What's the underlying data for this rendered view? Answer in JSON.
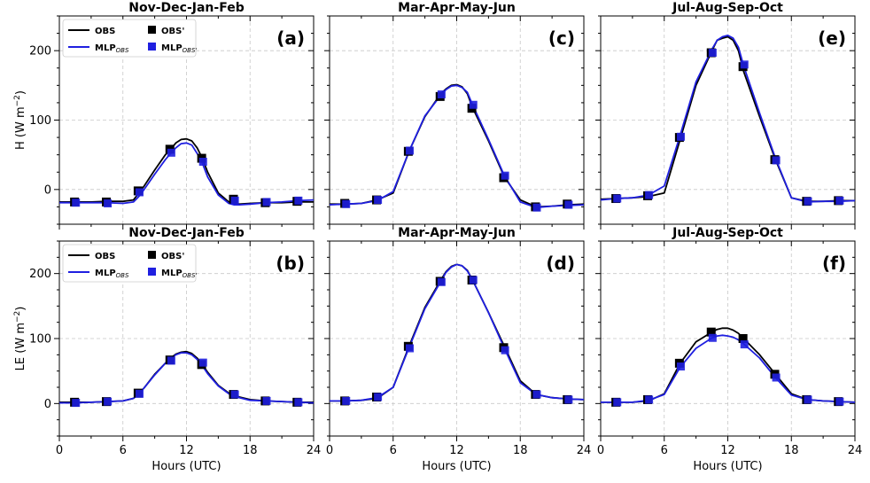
{
  "figure": {
    "xlabel": "Hours (UTC)",
    "colors": {
      "obs": "#000000",
      "mlp": "#1f1fe0"
    }
  },
  "chart_data": [
    {
      "id": "a",
      "panel_label": "(a)",
      "title": "Nov-Dec-Jan-Feb",
      "type": "line",
      "ylabel_main": "H (W m",
      "ylabel_sup": "−2",
      "ylabel_end": ")",
      "xlim": [
        0,
        24
      ],
      "ylim": [
        -50,
        250
      ],
      "xticks": [
        0,
        6,
        12,
        18,
        24
      ],
      "yticks": [
        0,
        100,
        200
      ],
      "legend": {
        "obs": "OBS",
        "mlp": "MLP",
        "mlp_sub": "OBS",
        "obs_m": "OBS'",
        "mlp_m": "MLP",
        "mlp_m_sub": "OBS'"
      },
      "x": [
        0,
        1.5,
        3,
        4.5,
        6,
        7,
        7.5,
        8,
        9,
        10,
        10.5,
        11,
        11.5,
        12,
        12.5,
        13,
        13.5,
        14,
        15,
        16,
        16.5,
        17,
        18,
        19.5,
        21,
        22.5,
        24
      ],
      "series": [
        {
          "key": "obs",
          "values": [
            -18,
            -18,
            -18,
            -17,
            -17,
            -15,
            -5,
            5,
            28,
            50,
            58,
            67,
            72,
            73,
            70,
            60,
            45,
            25,
            -5,
            -18,
            -20,
            -21,
            -20,
            -19,
            -19,
            -18,
            -18
          ]
        },
        {
          "key": "mlp",
          "values": [
            -19,
            -19,
            -19,
            -19,
            -20,
            -18,
            -10,
            0,
            22,
            43,
            52,
            60,
            66,
            67,
            64,
            52,
            38,
            18,
            -8,
            -20,
            -22,
            -22,
            -21,
            -19,
            -18,
            -16,
            -15
          ]
        }
      ],
      "markers_x": [
        1.5,
        4.5,
        7.5,
        10.5,
        13.5,
        16.5,
        19.5,
        22.5
      ],
      "markers": {
        "obs": [
          -18,
          -18,
          -2,
          58,
          45,
          -14,
          -19,
          -17
        ],
        "mlp": [
          -19,
          -20,
          -4,
          53,
          40,
          -16,
          -18,
          -16
        ]
      }
    },
    {
      "id": "c",
      "panel_label": "(c)",
      "title": "Mar-Apr-May-Jun",
      "type": "line",
      "xlim": [
        0,
        24
      ],
      "ylim": [
        -50,
        250
      ],
      "xticks": [
        0,
        6,
        12,
        18,
        24
      ],
      "yticks": [
        0,
        100,
        200
      ],
      "x": [
        0,
        1.5,
        3,
        4.5,
        6,
        7.5,
        9,
        10.5,
        11,
        11.5,
        12,
        12.5,
        13,
        13.5,
        15,
        16.5,
        18,
        19.5,
        21,
        22.5,
        24
      ],
      "series": [
        {
          "key": "obs",
          "values": [
            -21,
            -21,
            -20,
            -15,
            -5,
            55,
            105,
            138,
            145,
            150,
            151,
            148,
            138,
            118,
            70,
            18,
            -15,
            -25,
            -24,
            -22,
            -21
          ]
        },
        {
          "key": "mlp",
          "values": [
            -22,
            -21,
            -20,
            -16,
            -3,
            55,
            106,
            136,
            144,
            149,
            150,
            147,
            140,
            122,
            72,
            20,
            -18,
            -26,
            -24,
            -23,
            -22
          ]
        }
      ],
      "markers_x": [
        1.5,
        4.5,
        7.5,
        10.5,
        13.5,
        16.5,
        19.5,
        22.5
      ],
      "markers": {
        "obs": [
          -20,
          -15,
          55,
          134,
          117,
          17,
          -25,
          -21
        ],
        "mlp": [
          -21,
          -15,
          56,
          137,
          122,
          20,
          -26,
          -22
        ]
      }
    },
    {
      "id": "e",
      "panel_label": "(e)",
      "title": "Jul-Aug-Sep-Oct",
      "type": "line",
      "xlim": [
        0,
        24
      ],
      "ylim": [
        -50,
        250
      ],
      "xticks": [
        0,
        6,
        12,
        18,
        24
      ],
      "yticks": [
        0,
        100,
        200
      ],
      "x": [
        0,
        1.5,
        3,
        4.5,
        6,
        7.5,
        9,
        10.5,
        11,
        11.5,
        12,
        12.5,
        13,
        13.5,
        15,
        16.5,
        18,
        19.5,
        21,
        22.5,
        24
      ],
      "series": [
        {
          "key": "obs",
          "values": [
            -14,
            -13,
            -12,
            -10,
            -5,
            72,
            150,
            200,
            215,
            218,
            220,
            215,
            200,
            170,
            105,
            43,
            -12,
            -17,
            -17,
            -16,
            -16
          ]
        },
        {
          "key": "mlp",
          "values": [
            -15,
            -13,
            -12,
            -8,
            5,
            78,
            155,
            202,
            215,
            220,
            222,
            218,
            205,
            178,
            110,
            45,
            -12,
            -18,
            -17,
            -17,
            -16
          ]
        }
      ],
      "markers_x": [
        1.5,
        4.5,
        7.5,
        10.5,
        13.5,
        16.5,
        19.5,
        22.5
      ],
      "markers": {
        "obs": [
          -13,
          -9,
          75,
          197,
          177,
          43,
          -17,
          -16
        ],
        "mlp": [
          -13,
          -8,
          76,
          197,
          180,
          42,
          -17,
          -16
        ]
      }
    },
    {
      "id": "b",
      "panel_label": "(b)",
      "title": "Nov-Dec-Jan-Feb",
      "type": "line",
      "ylabel_main": "LE (W m",
      "ylabel_sup": "−2",
      "ylabel_end": ")",
      "xlim": [
        0,
        24
      ],
      "ylim": [
        -50,
        250
      ],
      "xticks": [
        0,
        6,
        12,
        18,
        24
      ],
      "yticks": [
        0,
        100,
        200
      ],
      "legend": {
        "obs": "OBS",
        "mlp": "MLP",
        "mlp_sub": "OBS",
        "obs_m": "OBS'",
        "mlp_m": "MLP",
        "mlp_m_sub": "OBS'"
      },
      "x": [
        0,
        1.5,
        3,
        4.5,
        6,
        7,
        7.5,
        8,
        9,
        10,
        10.5,
        11,
        11.5,
        12,
        12.5,
        13,
        13.5,
        14,
        15,
        16,
        16.5,
        17,
        18,
        19.5,
        21,
        22.5,
        24
      ],
      "series": [
        {
          "key": "obs",
          "values": [
            2,
            2,
            2,
            3,
            4,
            8,
            15,
            24,
            45,
            62,
            70,
            76,
            79,
            80,
            77,
            70,
            60,
            48,
            28,
            16,
            13,
            10,
            6,
            4,
            3,
            2,
            2
          ]
        },
        {
          "key": "mlp",
          "values": [
            1,
            1,
            2,
            3,
            4,
            8,
            15,
            24,
            44,
            62,
            69,
            75,
            78,
            78,
            75,
            68,
            58,
            46,
            27,
            15,
            12,
            9,
            5,
            4,
            3,
            2,
            1
          ]
        }
      ],
      "markers_x": [
        1.5,
        4.5,
        7.5,
        10.5,
        13.5,
        16.5,
        19.5,
        22.5
      ],
      "markers": {
        "obs": [
          2,
          3,
          16,
          67,
          60,
          14,
          4,
          2
        ],
        "mlp": [
          1,
          3,
          15,
          66,
          63,
          14,
          4,
          2
        ]
      }
    },
    {
      "id": "d",
      "panel_label": "(d)",
      "title": "Mar-Apr-May-Jun",
      "type": "line",
      "xlim": [
        0,
        24
      ],
      "ylim": [
        -50,
        250
      ],
      "xticks": [
        0,
        6,
        12,
        18,
        24
      ],
      "yticks": [
        0,
        100,
        200
      ],
      "x": [
        0,
        1.5,
        3,
        4.5,
        6,
        7.5,
        9,
        10.5,
        11,
        11.5,
        12,
        12.5,
        13,
        13.5,
        15,
        16.5,
        18,
        19.5,
        21,
        22.5,
        24
      ],
      "series": [
        {
          "key": "obs",
          "values": [
            4,
            4,
            5,
            8,
            25,
            88,
            148,
            190,
            203,
            211,
            214,
            212,
            205,
            190,
            140,
            88,
            35,
            14,
            9,
            7,
            6
          ]
        },
        {
          "key": "mlp",
          "values": [
            4,
            4,
            5,
            9,
            25,
            86,
            146,
            188,
            202,
            210,
            214,
            212,
            204,
            190,
            140,
            85,
            32,
            14,
            9,
            7,
            6
          ]
        }
      ],
      "markers_x": [
        1.5,
        4.5,
        7.5,
        10.5,
        13.5,
        16.5,
        19.5,
        22.5
      ],
      "markers": {
        "obs": [
          4,
          10,
          88,
          188,
          190,
          86,
          14,
          6
        ],
        "mlp": [
          4,
          10,
          85,
          187,
          190,
          82,
          14,
          6
        ]
      }
    },
    {
      "id": "f",
      "panel_label": "(f)",
      "title": "Jul-Aug-Sep-Oct",
      "type": "line",
      "xlim": [
        0,
        24
      ],
      "ylim": [
        -50,
        250
      ],
      "xticks": [
        0,
        6,
        12,
        18,
        24
      ],
      "yticks": [
        0,
        100,
        200
      ],
      "x": [
        0,
        1.5,
        3,
        4.5,
        6,
        7.5,
        9,
        10.5,
        11,
        11.5,
        12,
        12.5,
        13,
        13.5,
        15,
        16.5,
        18,
        19.5,
        21,
        22.5,
        24
      ],
      "series": [
        {
          "key": "obs",
          "values": [
            2,
            2,
            2,
            4,
            15,
            62,
            95,
            110,
            114,
            116,
            116,
            113,
            108,
            100,
            75,
            45,
            15,
            6,
            4,
            3,
            2
          ]
        },
        {
          "key": "mlp",
          "values": [
            2,
            2,
            2,
            5,
            14,
            56,
            85,
            101,
            104,
            105,
            104,
            102,
            98,
            92,
            70,
            40,
            13,
            6,
            4,
            3,
            2
          ]
        }
      ],
      "markers_x": [
        1.5,
        4.5,
        7.5,
        10.5,
        13.5,
        16.5,
        19.5,
        22.5
      ],
      "markers": {
        "obs": [
          2,
          6,
          62,
          110,
          100,
          45,
          6,
          3
        ],
        "mlp": [
          2,
          6,
          57,
          101,
          91,
          40,
          6,
          3
        ]
      }
    }
  ]
}
